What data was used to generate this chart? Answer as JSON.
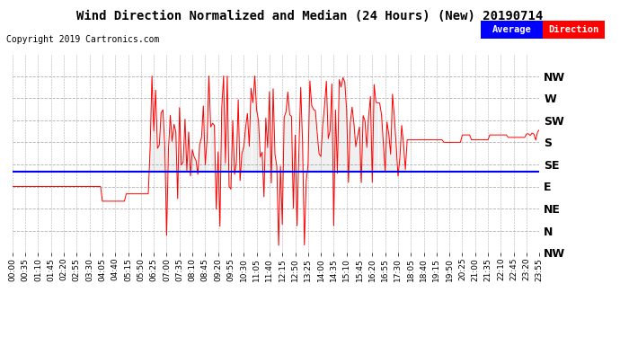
{
  "title": "Wind Direction Normalized and Median (24 Hours) (New) 20190714",
  "copyright": "Copyright 2019 Cartronics.com",
  "ytick_vals": [
    315,
    270,
    225,
    180,
    135,
    90,
    45,
    0,
    -45
  ],
  "ytick_labels": [
    "NW",
    "W",
    "SW",
    "S",
    "SE",
    "E",
    "NE",
    "N",
    "NW"
  ],
  "ylim": [
    -45,
    360
  ],
  "bgcolor": "#ffffff",
  "grid_color": "#b0b0b0",
  "red_color": "#ff0000",
  "dark_color": "#333333",
  "blue_color": "#0000ff",
  "avg_direction_value": 120,
  "legend_avg_label": "Average",
  "legend_dir_label": "Direction",
  "legend_avg_bgcolor": "#0000ff",
  "legend_dir_bgcolor": "#ff0000",
  "tick_every_n": 7,
  "n_points": 288
}
